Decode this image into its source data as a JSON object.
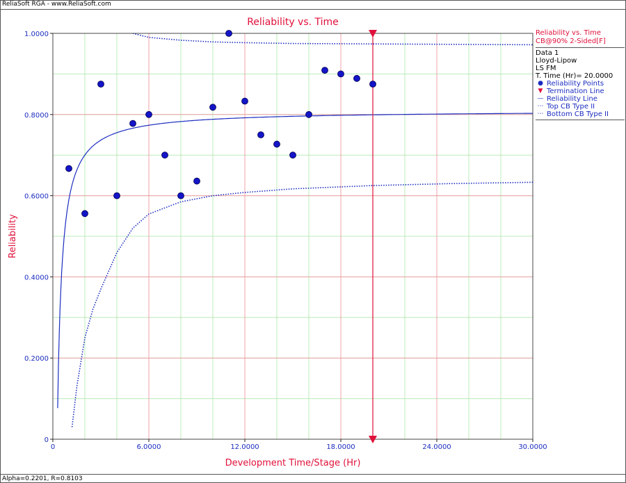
{
  "header": {
    "title": "ReliaSoft RGA - www.ReliaSoft.com"
  },
  "footer": {
    "status": "Alpha=0.2201, R=0.8103"
  },
  "legend": {
    "title1": "Reliability vs. Time",
    "title2": "CB@90% 2-Sided[F]",
    "data_name": "Data 1",
    "model": "Lloyd-Lipow",
    "method": "LS FM",
    "term_time": "T. Time (Hr)= 20.0000",
    "items": [
      {
        "label": "Reliability Points",
        "symbol": "dot-icon"
      },
      {
        "label": "Termination Line",
        "symbol": "triangle-down-icon"
      },
      {
        "label": "Reliability Line",
        "symbol": "solid-line-icon"
      },
      {
        "label": "Top CB Type II",
        "symbol": "dotted-line-icon"
      },
      {
        "label": "Bottom CB Type II",
        "symbol": "dotted-line-icon"
      }
    ]
  },
  "colors": {
    "accent_red": "#e0103a",
    "series_blue": "#1b2cc0",
    "grid_major": "#f0a0a8",
    "grid_minor": "#b8ecb8"
  },
  "chart_data": {
    "type": "scatter",
    "title": "Reliability vs. Time",
    "xlabel": "Development Time/Stage (Hr)",
    "ylabel": "Reliability",
    "xlim": [
      0,
      30
    ],
    "ylim": [
      0,
      1
    ],
    "x_ticks": [
      0,
      6,
      12,
      18,
      24,
      30
    ],
    "x_tick_labels": [
      "0",
      "6.0000",
      "12.0000",
      "18.0000",
      "24.0000",
      "30.0000"
    ],
    "y_ticks": [
      0,
      0.2,
      0.4,
      0.6,
      0.8,
      1.0
    ],
    "y_tick_labels": [
      "0",
      "0.2000",
      "0.4000",
      "0.6000",
      "0.8000",
      "1.0000"
    ],
    "grid": true,
    "termination_time": 20,
    "series": [
      {
        "name": "Reliability Points",
        "x": [
          1,
          2,
          3,
          4,
          5,
          6,
          7,
          8,
          9,
          10,
          11,
          12,
          13,
          14,
          15,
          16,
          17,
          18,
          19,
          20
        ],
        "y": [
          0.667,
          0.556,
          0.875,
          0.6,
          0.778,
          0.8,
          0.7,
          0.6,
          0.636,
          0.818,
          1.0,
          0.833,
          0.75,
          0.727,
          0.7,
          0.8,
          0.909,
          0.9,
          0.889,
          0.875
        ]
      },
      {
        "name": "Reliability Line",
        "model": {
          "R_inf": 0.8103,
          "alpha": 0.2201
        }
      },
      {
        "name": "Top CB Type II",
        "x": [
          5,
          6,
          8,
          10,
          12,
          15,
          20,
          25,
          30
        ],
        "y": [
          1.0,
          0.99,
          0.983,
          0.979,
          0.977,
          0.975,
          0.974,
          0.973,
          0.972
        ]
      },
      {
        "name": "Bottom CB Type II",
        "x": [
          1.2,
          1.5,
          2,
          2.5,
          3,
          4,
          5,
          6,
          8,
          10,
          12,
          15,
          20,
          25,
          30
        ],
        "y": [
          0.03,
          0.13,
          0.25,
          0.32,
          0.37,
          0.46,
          0.52,
          0.555,
          0.585,
          0.6,
          0.608,
          0.617,
          0.625,
          0.63,
          0.633
        ]
      }
    ]
  }
}
